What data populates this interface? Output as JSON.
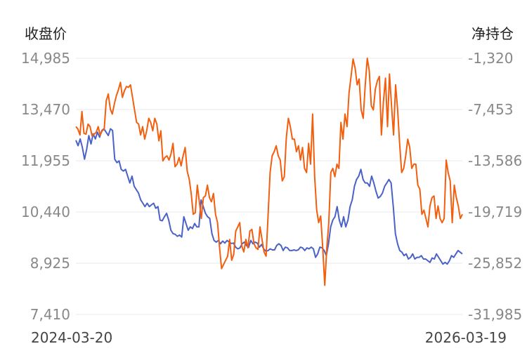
{
  "chart_data": {
    "type": "line",
    "left_axis_title": "收盘价",
    "right_axis_title": "净持仓",
    "left_ticks": [
      "14,985",
      "13,470",
      "11,955",
      "10,440",
      "8,925",
      "7,410"
    ],
    "right_ticks": [
      "-1,320",
      "-7,453",
      "-13,586",
      "-19,719",
      "-25,852",
      "-31,985"
    ],
    "y_left_range": [
      7410,
      14985
    ],
    "y_right_range": [
      -31985,
      -1320
    ],
    "x_start_label": "2024-03-20",
    "x_end_label": "2026-03-19",
    "grid": true,
    "colors": {
      "close": "#4A62C8",
      "net": "#F25F0F"
    },
    "series": [
      {
        "axis": "left",
        "color": "#4A62C8",
        "values": [
          12560,
          12400,
          12600,
          12350,
          12000,
          12300,
          12700,
          12450,
          12750,
          12600,
          12800,
          12650,
          12850,
          12900,
          12800,
          12700,
          12900,
          12850,
          12000,
          11900,
          11950,
          11700,
          11650,
          11700,
          11500,
          11300,
          11500,
          11200,
          11100,
          11000,
          10800,
          10700,
          10600,
          10700,
          10600,
          10650,
          10700,
          10550,
          10600,
          10200,
          10180,
          10300,
          10400,
          10200,
          9900,
          9800,
          9780,
          9720,
          9760,
          9700,
          10300,
          10100,
          9900,
          10000,
          9950,
          10100,
          10000,
          10000,
          10800,
          10600,
          10400,
          10300,
          10250,
          9800,
          9600,
          9550,
          9600,
          9500,
          9580,
          9520,
          9600,
          9550,
          9510,
          9520,
          9400,
          9350,
          9380,
          9500,
          9550,
          9450,
          9400,
          9600,
          9500,
          9550,
          9520,
          9400,
          9480,
          9350,
          9280,
          9300,
          9350,
          9320,
          9320,
          9450,
          9500,
          9450,
          9300,
          9400,
          9380,
          9300,
          9300,
          9320,
          9300,
          9320,
          9400,
          9380,
          9300,
          9380,
          9350,
          9400,
          9350,
          9100,
          9200,
          9400,
          9380,
          9300,
          9150,
          9500,
          10000,
          10200,
          10300,
          10600,
          10200,
          10000,
          10300,
          10000,
          10200,
          10600,
          10800,
          11200,
          11400,
          11500,
          11700,
          11400,
          11300,
          11300,
          11200,
          11500,
          11300,
          11050,
          10850,
          10900,
          11000,
          11200,
          11300,
          11400,
          11300,
          10600,
          9800,
          9500,
          9300,
          9250,
          9150,
          9200,
          9050,
          9100,
          9200,
          9050,
          9100,
          9100,
          9150,
          9050,
          9050,
          9000,
          8950,
          9080,
          9050,
          9200,
          9100,
          9000,
          8900,
          8950,
          8900,
          9000,
          9150,
          9100,
          9200,
          9300,
          9250,
          9200
        ]
      },
      {
        "axis": "right",
        "color": "#F25F0F",
        "values": [
          -9500,
          -9800,
          -10500,
          -7700,
          -10300,
          -10400,
          -9200,
          -9500,
          -10600,
          -10400,
          -10200,
          -9500,
          -10500,
          -10000,
          -9800,
          -6400,
          -5600,
          -7400,
          -8000,
          -6800,
          -5800,
          -5100,
          -4200,
          -6000,
          -5200,
          -4700,
          -4800,
          -4500,
          -6000,
          -7500,
          -9000,
          -9200,
          -10500,
          -9500,
          -11000,
          -10000,
          -8500,
          -9000,
          -10000,
          -8500,
          -9200,
          -11200,
          -10000,
          -13600,
          -13200,
          -13000,
          -13500,
          -12800,
          -11500,
          -14300,
          -14000,
          -13200,
          -14200,
          -13000,
          -12000,
          -14800,
          -15800,
          -17500,
          -20000,
          -19800,
          -16500,
          -18500,
          -20500,
          -18000,
          -17800,
          -16500,
          -18000,
          -18500,
          -17500,
          -20000,
          -21000,
          -24000,
          -26500,
          -26000,
          -25500,
          -25000,
          -23000,
          -25500,
          -24800,
          -22000,
          -21500,
          -21000,
          -23800,
          -24500,
          -23000,
          -24000,
          -22000,
          -21800,
          -23500,
          -24000,
          -24200,
          -21500,
          -23000,
          -24500,
          -25000,
          -20000,
          -15000,
          -13000,
          -12500,
          -11800,
          -13000,
          -13500,
          -16000,
          -15500,
          -10800,
          -8500,
          -9500,
          -11000,
          -11000,
          -12500,
          -11800,
          -13500,
          -12000,
          -14500,
          -15000,
          -11500,
          -14000,
          -8000,
          -15500,
          -19500,
          -21000,
          -20200,
          -24000,
          -28500,
          -24000,
          -21000,
          -15000,
          -14500,
          -15500,
          -14000,
          -14500,
          -9000,
          -11000,
          -8000,
          -9500,
          -5500,
          -3500,
          -1400,
          -2500,
          -4500,
          -3800,
          -7500,
          -8500,
          -4500,
          -1320,
          -2800,
          -7000,
          -7500,
          -5000,
          -4000,
          -3500,
          -10500,
          -6500,
          -3700,
          -9500,
          -3200,
          -7000,
          -10500,
          -4500,
          -7500,
          -11500,
          -15000,
          -14500,
          -13000,
          -11000,
          -12000,
          -14500,
          -14000,
          -14000,
          -16500,
          -17000,
          -20000,
          -19500,
          -20500,
          -21500,
          -19000,
          -18000,
          -17800,
          -20500,
          -19000,
          -20500,
          -21000,
          -20500,
          -13500,
          -15000,
          -16000,
          -21000,
          -16500,
          -18000,
          -19000,
          -20500,
          -20000
        ]
      }
    ]
  }
}
